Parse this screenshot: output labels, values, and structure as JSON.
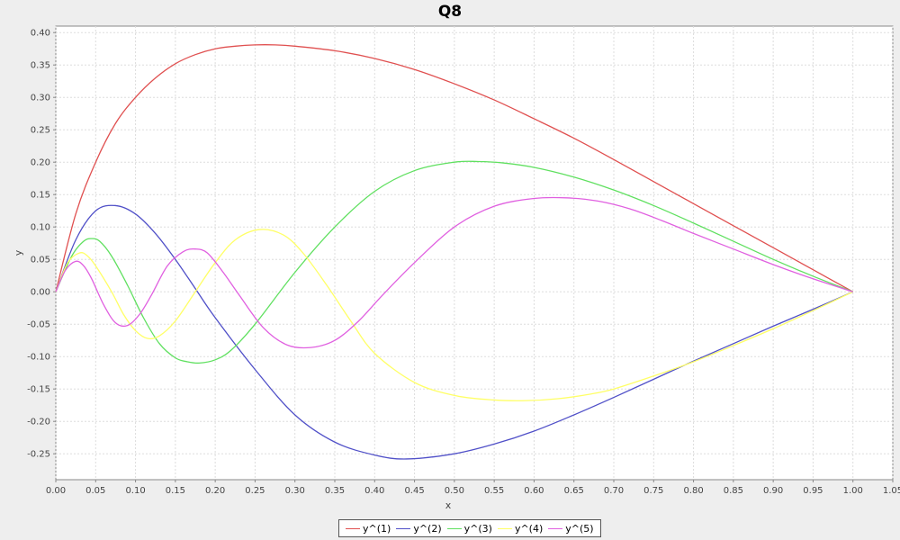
{
  "chart_data": {
    "type": "line",
    "title": "Q8",
    "xlabel": "x",
    "ylabel": "y",
    "xlim": [
      0.0,
      1.05
    ],
    "ylim": [
      -0.29,
      0.41
    ],
    "grid": true,
    "legend_position": "bottom",
    "x_ticks": [
      "0.00",
      "0.05",
      "0.10",
      "0.15",
      "0.20",
      "0.25",
      "0.30",
      "0.35",
      "0.40",
      "0.45",
      "0.50",
      "0.55",
      "0.60",
      "0.65",
      "0.70",
      "0.75",
      "0.80",
      "0.85",
      "0.90",
      "0.95",
      "1.00",
      "1.05"
    ],
    "y_ticks": [
      "0.40",
      "0.35",
      "0.30",
      "0.25",
      "0.20",
      "0.15",
      "0.10",
      "0.05",
      "0.00",
      "-0.05",
      "-0.10",
      "-0.15",
      "-0.20",
      "-0.25"
    ],
    "x_tick_values": [
      0,
      0.05,
      0.1,
      0.15,
      0.2,
      0.25,
      0.3,
      0.35,
      0.4,
      0.45,
      0.5,
      0.55,
      0.6,
      0.65,
      0.7,
      0.75,
      0.8,
      0.85,
      0.9,
      0.95,
      1.0,
      1.05
    ],
    "y_tick_values": [
      0.4,
      0.35,
      0.3,
      0.25,
      0.2,
      0.15,
      0.1,
      0.05,
      0,
      -0.05,
      -0.1,
      -0.15,
      -0.2,
      -0.25
    ],
    "series": [
      {
        "name": "y^(1)",
        "color": "#e05050",
        "x": [
          0,
          0.025,
          0.05,
          0.075,
          0.1,
          0.125,
          0.15,
          0.175,
          0.2,
          0.225,
          0.25,
          0.275,
          0.3,
          0.35,
          0.4,
          0.45,
          0.5,
          0.55,
          0.6,
          0.65,
          0.7,
          0.75,
          0.8,
          0.85,
          0.9,
          0.95,
          1.0
        ],
        "y": [
          0,
          0.12,
          0.2,
          0.26,
          0.3,
          0.33,
          0.352,
          0.366,
          0.375,
          0.379,
          0.381,
          0.381,
          0.379,
          0.372,
          0.36,
          0.343,
          0.321,
          0.296,
          0.267,
          0.237,
          0.204,
          0.17,
          0.136,
          0.102,
          0.068,
          0.034,
          0
        ]
      },
      {
        "name": "y^(2)",
        "color": "#5050c8",
        "x": [
          0,
          0.025,
          0.05,
          0.075,
          0.1,
          0.125,
          0.15,
          0.175,
          0.2,
          0.25,
          0.3,
          0.35,
          0.4,
          0.44,
          0.5,
          0.55,
          0.6,
          0.65,
          0.7,
          0.75,
          0.8,
          0.85,
          0.9,
          0.95,
          1.0
        ],
        "y": [
          0,
          0.08,
          0.125,
          0.133,
          0.12,
          0.09,
          0.05,
          0.005,
          -0.04,
          -0.12,
          -0.19,
          -0.232,
          -0.252,
          -0.258,
          -0.25,
          -0.235,
          -0.215,
          -0.19,
          -0.163,
          -0.135,
          -0.107,
          -0.08,
          -0.053,
          -0.027,
          0
        ]
      },
      {
        "name": "y^(3)",
        "color": "#60e060",
        "x": [
          0,
          0.02,
          0.035,
          0.045,
          0.055,
          0.07,
          0.09,
          0.11,
          0.13,
          0.15,
          0.165,
          0.18,
          0.2,
          0.22,
          0.25,
          0.3,
          0.35,
          0.4,
          0.45,
          0.5,
          0.53,
          0.56,
          0.6,
          0.65,
          0.7,
          0.75,
          0.8,
          0.85,
          0.9,
          0.95,
          1.0
        ],
        "y": [
          0,
          0.055,
          0.078,
          0.082,
          0.078,
          0.055,
          0.01,
          -0.04,
          -0.08,
          -0.102,
          -0.108,
          -0.11,
          -0.105,
          -0.09,
          -0.05,
          0.03,
          0.1,
          0.155,
          0.187,
          0.2,
          0.201,
          0.199,
          0.192,
          0.177,
          0.157,
          0.133,
          0.106,
          0.078,
          0.05,
          0.024,
          0
        ]
      },
      {
        "name": "y^(4)",
        "color": "#ffff66",
        "x": [
          0,
          0.015,
          0.03,
          0.04,
          0.05,
          0.07,
          0.085,
          0.1,
          0.115,
          0.13,
          0.15,
          0.175,
          0.2,
          0.225,
          0.255,
          0.285,
          0.31,
          0.34,
          0.37,
          0.4,
          0.45,
          0.5,
          0.55,
          0.59,
          0.63,
          0.67,
          0.7,
          0.75,
          0.8,
          0.85,
          0.9,
          0.95,
          1.0
        ],
        "y": [
          0,
          0.045,
          0.06,
          0.055,
          0.04,
          0.0,
          -0.035,
          -0.06,
          -0.072,
          -0.068,
          -0.045,
          0.0,
          0.045,
          0.08,
          0.096,
          0.088,
          0.06,
          0.01,
          -0.045,
          -0.095,
          -0.14,
          -0.16,
          -0.167,
          -0.168,
          -0.165,
          -0.158,
          -0.15,
          -0.13,
          -0.108,
          -0.083,
          -0.057,
          -0.029,
          0
        ]
      },
      {
        "name": "y^(5)",
        "color": "#e060e0",
        "x": [
          0,
          0.012,
          0.025,
          0.035,
          0.045,
          0.06,
          0.075,
          0.09,
          0.105,
          0.12,
          0.14,
          0.16,
          0.175,
          0.19,
          0.21,
          0.23,
          0.26,
          0.29,
          0.32,
          0.35,
          0.38,
          0.41,
          0.45,
          0.5,
          0.55,
          0.6,
          0.64,
          0.68,
          0.72,
          0.76,
          0.8,
          0.85,
          0.9,
          0.95,
          1.0
        ],
        "y": [
          0,
          0.033,
          0.047,
          0.04,
          0.02,
          -0.02,
          -0.048,
          -0.052,
          -0.035,
          -0.005,
          0.04,
          0.062,
          0.066,
          0.06,
          0.03,
          -0.005,
          -0.055,
          -0.082,
          -0.086,
          -0.075,
          -0.045,
          -0.005,
          0.045,
          0.1,
          0.132,
          0.144,
          0.145,
          0.14,
          0.128,
          0.11,
          0.09,
          0.066,
          0.042,
          0.02,
          0
        ]
      }
    ]
  }
}
